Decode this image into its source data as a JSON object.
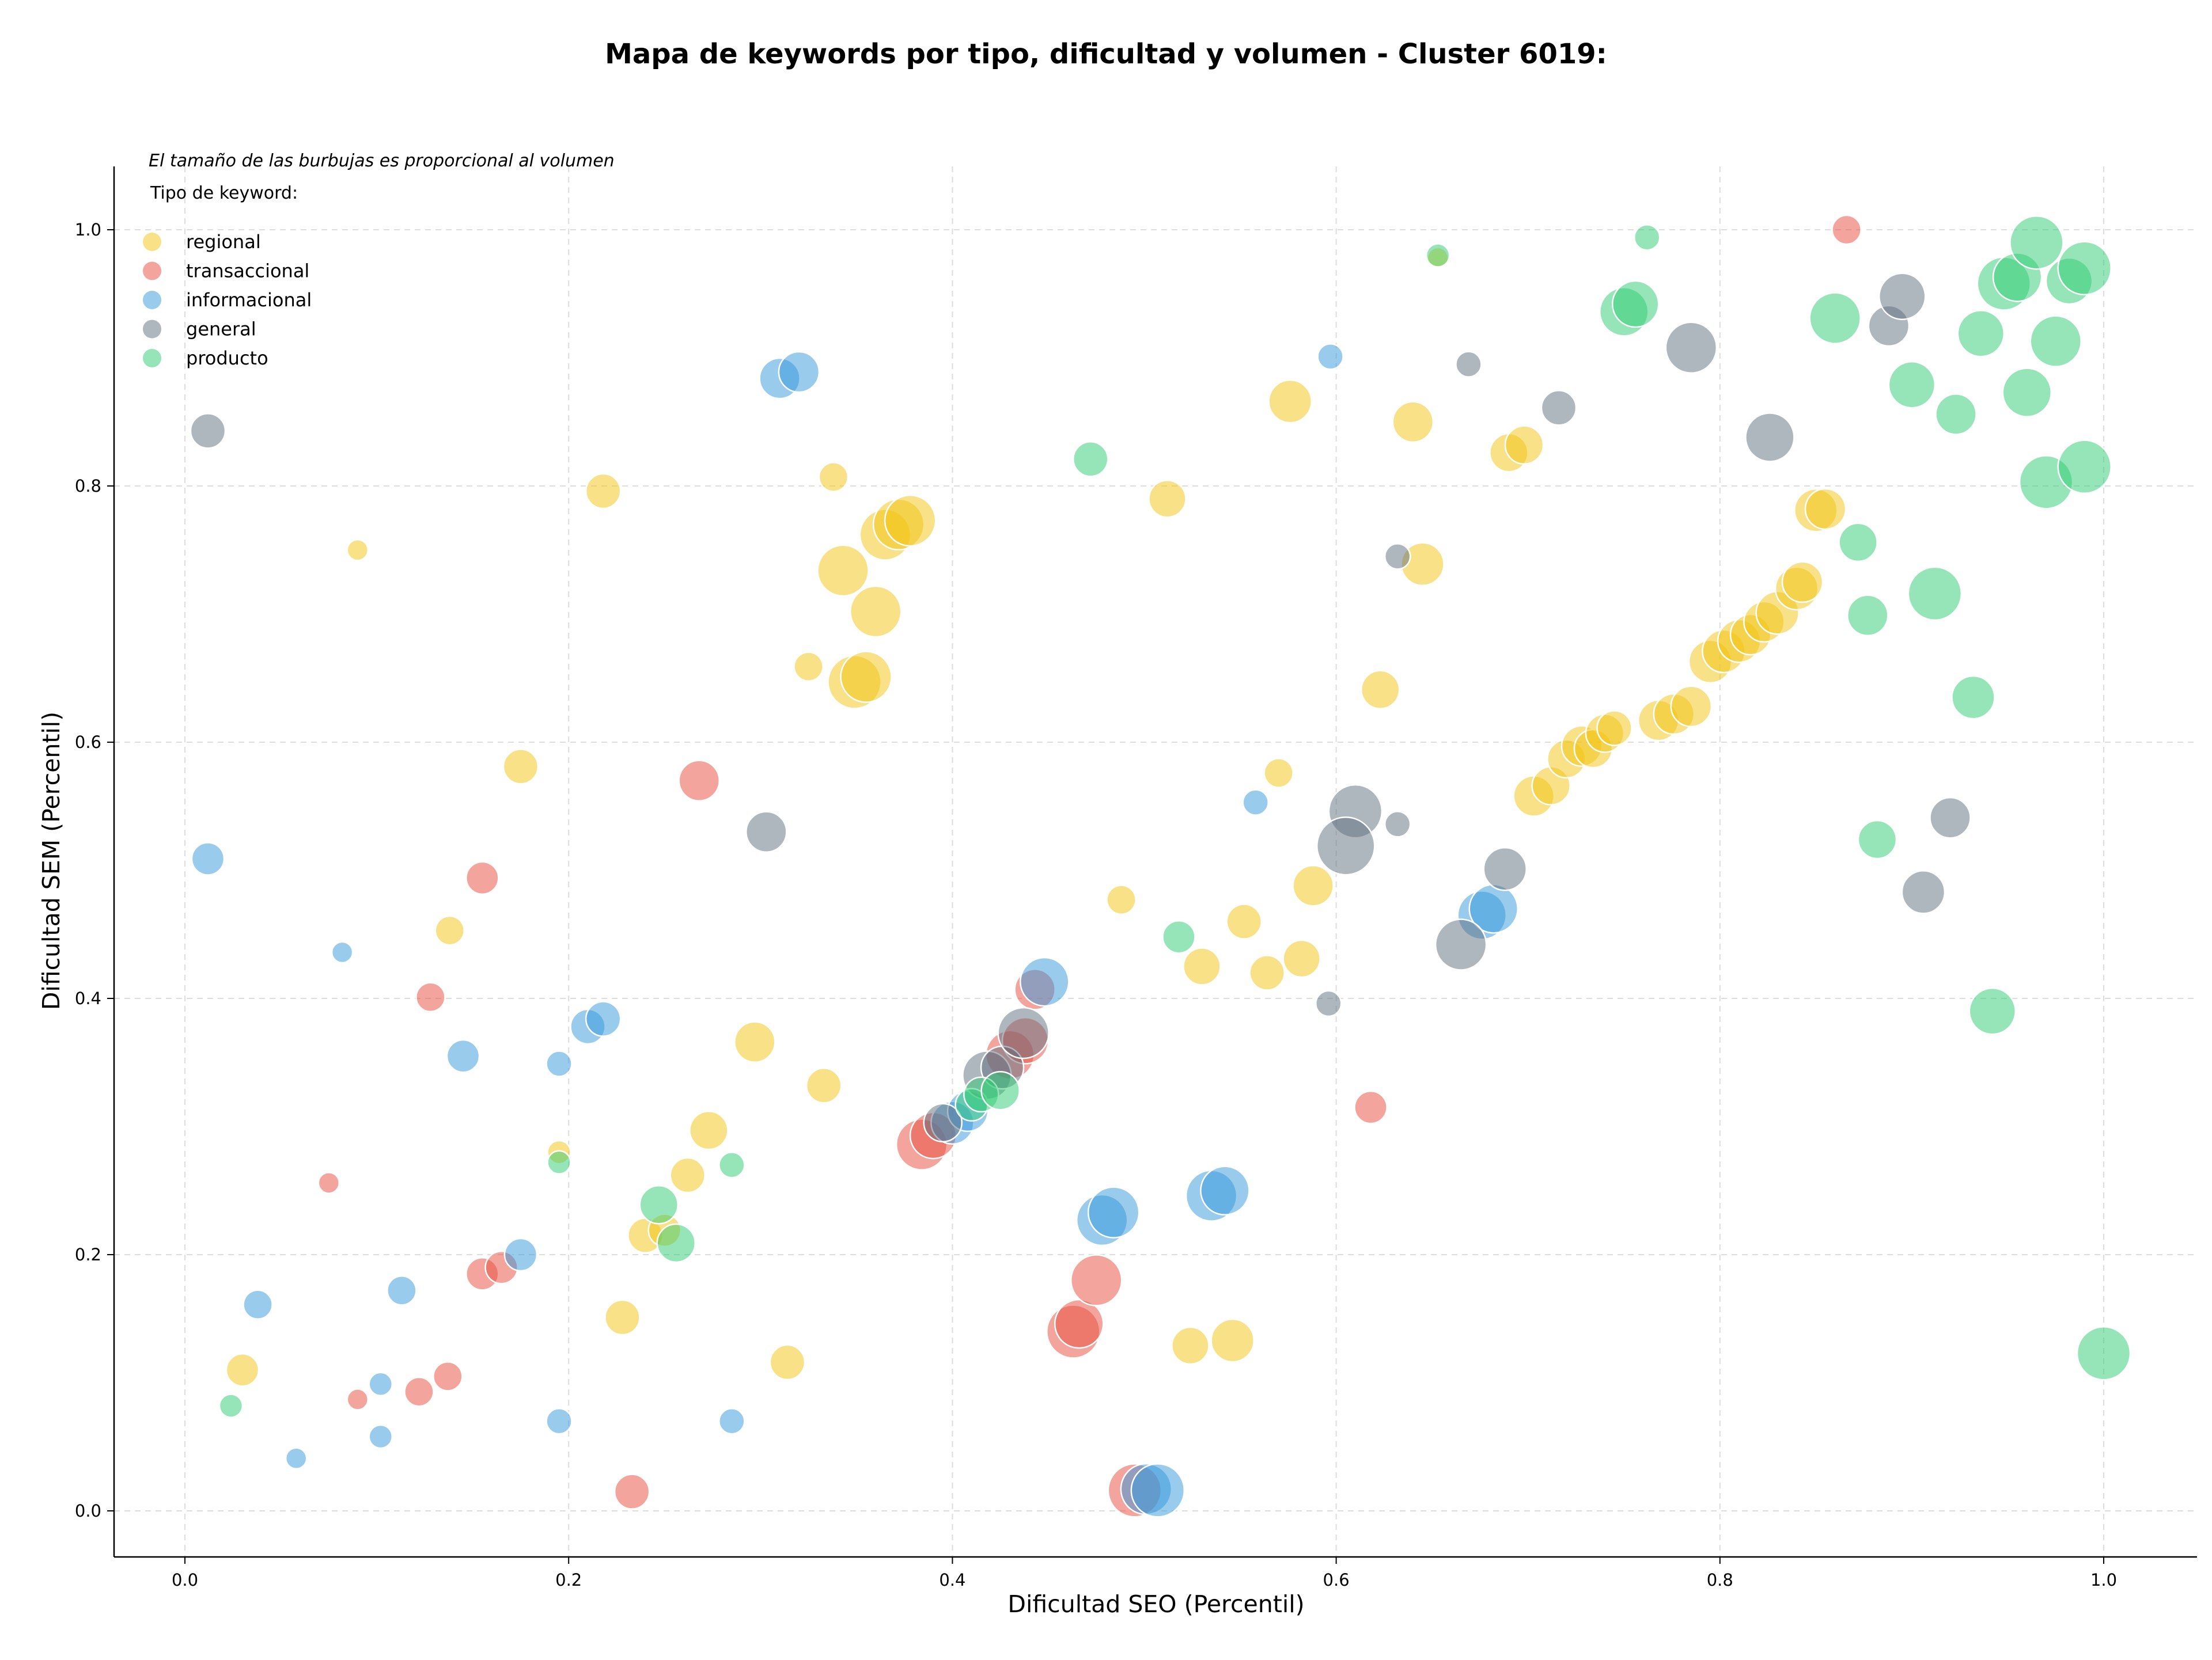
{
  "chart_data": {
    "type": "scatter",
    "title": "Mapa de keywords por tipo, dificultad y volumen - Cluster 6019:",
    "xlabel": "Dificultad SEO (Percentil)",
    "ylabel": "Dificultad SEM (Percentil)",
    "xlim": [
      -0.037,
      1.048
    ],
    "ylim": [
      -0.035,
      1.05
    ],
    "xticks": [
      0.0,
      0.2,
      0.4,
      0.6,
      0.8,
      1.0
    ],
    "yticks": [
      0.0,
      0.2,
      0.4,
      0.6,
      0.8,
      1.0
    ],
    "grid": true,
    "legend_position": "top-left",
    "legend_title": "Tipo de keyword:",
    "note": "El tamaño de las burbujas es proporcional al volumen",
    "series": [
      {
        "name": "regional",
        "color": "#f1c40f",
        "points": [
          [
            0.653,
            0.978,
            18
          ],
          [
            0.09,
            0.75,
            18
          ],
          [
            0.195,
            0.28,
            20
          ],
          [
            0.338,
            0.807,
            25
          ],
          [
            0.325,
            0.659,
            25
          ],
          [
            0.218,
            0.796,
            30
          ],
          [
            0.175,
            0.581,
            30
          ],
          [
            0.138,
            0.453,
            25
          ],
          [
            0.03,
            0.11,
            28
          ],
          [
            0.228,
            0.151,
            30
          ],
          [
            0.314,
            0.116,
            30
          ],
          [
            0.333,
            0.332,
            30
          ],
          [
            0.297,
            0.366,
            35
          ],
          [
            0.273,
            0.297,
            33
          ],
          [
            0.262,
            0.262,
            30
          ],
          [
            0.24,
            0.215,
            30
          ],
          [
            0.25,
            0.219,
            28
          ],
          [
            0.488,
            0.477,
            25
          ],
          [
            0.512,
            0.79,
            32
          ],
          [
            0.53,
            0.425,
            32
          ],
          [
            0.552,
            0.46,
            30
          ],
          [
            0.564,
            0.42,
            30
          ],
          [
            0.57,
            0.576,
            25
          ],
          [
            0.576,
            0.866,
            37
          ],
          [
            0.582,
            0.431,
            32
          ],
          [
            0.588,
            0.488,
            35
          ],
          [
            0.623,
            0.641,
            33
          ],
          [
            0.64,
            0.85,
            35
          ],
          [
            0.645,
            0.739,
            37
          ],
          [
            0.69,
            0.826,
            33
          ],
          [
            0.698,
            0.832,
            33
          ],
          [
            0.703,
            0.558,
            35
          ],
          [
            0.712,
            0.566,
            33
          ],
          [
            0.72,
            0.587,
            33
          ],
          [
            0.728,
            0.597,
            35
          ],
          [
            0.734,
            0.595,
            33
          ],
          [
            0.74,
            0.607,
            33
          ],
          [
            0.745,
            0.611,
            30
          ],
          [
            0.768,
            0.617,
            35
          ],
          [
            0.776,
            0.622,
            35
          ],
          [
            0.785,
            0.628,
            35
          ],
          [
            0.795,
            0.663,
            37
          ],
          [
            0.802,
            0.671,
            37
          ],
          [
            0.81,
            0.679,
            37
          ],
          [
            0.816,
            0.684,
            35
          ],
          [
            0.823,
            0.694,
            35
          ],
          [
            0.83,
            0.701,
            37
          ],
          [
            0.84,
            0.72,
            37
          ],
          [
            0.843,
            0.725,
            35
          ],
          [
            0.85,
            0.781,
            37
          ],
          [
            0.855,
            0.782,
            35
          ],
          [
            0.524,
            0.129,
            32
          ],
          [
            0.546,
            0.133,
            37
          ],
          [
            0.343,
            0.734,
            44
          ],
          [
            0.36,
            0.702,
            44
          ],
          [
            0.365,
            0.762,
            44
          ],
          [
            0.372,
            0.77,
            44
          ],
          [
            0.378,
            0.773,
            44
          ],
          [
            0.349,
            0.647,
            46
          ],
          [
            0.355,
            0.651,
            44
          ]
        ]
      },
      {
        "name": "transaccional",
        "color": "#e74c3c",
        "points": [
          [
            0.866,
            1.0,
            25
          ],
          [
            0.075,
            0.256,
            18
          ],
          [
            0.09,
            0.087,
            18
          ],
          [
            0.128,
            0.401,
            25
          ],
          [
            0.122,
            0.093,
            25
          ],
          [
            0.137,
            0.105,
            25
          ],
          [
            0.155,
            0.494,
            28
          ],
          [
            0.155,
            0.185,
            28
          ],
          [
            0.165,
            0.19,
            28
          ],
          [
            0.268,
            0.57,
            35
          ],
          [
            0.233,
            0.015,
            30
          ],
          [
            0.618,
            0.315,
            28
          ],
          [
            0.384,
            0.286,
            44
          ],
          [
            0.39,
            0.293,
            40
          ],
          [
            0.463,
            0.14,
            46
          ],
          [
            0.466,
            0.146,
            42
          ],
          [
            0.475,
            0.18,
            44
          ],
          [
            0.495,
            0.016,
            46
          ],
          [
            0.43,
            0.356,
            42
          ],
          [
            0.438,
            0.367,
            40
          ],
          [
            0.443,
            0.407,
            35
          ]
        ]
      },
      {
        "name": "informacional",
        "color": "#3498db",
        "points": [
          [
            0.597,
            0.901,
            22
          ],
          [
            0.082,
            0.436,
            18
          ],
          [
            0.102,
            0.099,
            20
          ],
          [
            0.102,
            0.058,
            20
          ],
          [
            0.195,
            0.349,
            22
          ],
          [
            0.195,
            0.07,
            22
          ],
          [
            0.058,
            0.041,
            18
          ],
          [
            0.012,
            0.509,
            28
          ],
          [
            0.038,
            0.161,
            25
          ],
          [
            0.113,
            0.172,
            25
          ],
          [
            0.175,
            0.2,
            28
          ],
          [
            0.145,
            0.355,
            28
          ],
          [
            0.21,
            0.378,
            30
          ],
          [
            0.218,
            0.384,
            30
          ],
          [
            0.285,
            0.07,
            22
          ],
          [
            0.31,
            0.884,
            35
          ],
          [
            0.32,
            0.889,
            35
          ],
          [
            0.558,
            0.553,
            22
          ],
          [
            0.4,
            0.303,
            37
          ],
          [
            0.408,
            0.312,
            35
          ],
          [
            0.448,
            0.413,
            42
          ],
          [
            0.478,
            0.227,
            44
          ],
          [
            0.484,
            0.233,
            44
          ],
          [
            0.535,
            0.246,
            44
          ],
          [
            0.542,
            0.25,
            42
          ],
          [
            0.501,
            0.017,
            44
          ],
          [
            0.507,
            0.016,
            46
          ],
          [
            0.676,
            0.465,
            42
          ],
          [
            0.682,
            0.47,
            42
          ]
        ]
      },
      {
        "name": "general",
        "color": "#5d6d7e",
        "points": [
          [
            0.012,
            0.843,
            30
          ],
          [
            0.669,
            0.895,
            22
          ],
          [
            0.632,
            0.745,
            22
          ],
          [
            0.632,
            0.536,
            22
          ],
          [
            0.596,
            0.396,
            22
          ],
          [
            0.303,
            0.53,
            35
          ],
          [
            0.716,
            0.861,
            30
          ],
          [
            0.785,
            0.908,
            44
          ],
          [
            0.826,
            0.838,
            42
          ],
          [
            0.888,
            0.925,
            35
          ],
          [
            0.895,
            0.948,
            40
          ],
          [
            0.92,
            0.541,
            35
          ],
          [
            0.906,
            0.483,
            37
          ],
          [
            0.61,
            0.546,
            46
          ],
          [
            0.605,
            0.519,
            50
          ],
          [
            0.665,
            0.442,
            44
          ],
          [
            0.688,
            0.501,
            37
          ],
          [
            0.395,
            0.303,
            33
          ],
          [
            0.418,
            0.34,
            42
          ],
          [
            0.426,
            0.346,
            37
          ],
          [
            0.437,
            0.373,
            44
          ]
        ]
      },
      {
        "name": "producto",
        "color": "#2ecc71",
        "points": [
          [
            0.653,
            0.98,
            20
          ],
          [
            0.762,
            0.994,
            22
          ],
          [
            0.024,
            0.082,
            20
          ],
          [
            0.195,
            0.272,
            20
          ],
          [
            0.285,
            0.27,
            22
          ],
          [
            0.472,
            0.821,
            30
          ],
          [
            0.518,
            0.448,
            28
          ],
          [
            0.247,
            0.239,
            33
          ],
          [
            0.256,
            0.209,
            33
          ],
          [
            0.41,
            0.317,
            28
          ],
          [
            0.415,
            0.325,
            30
          ],
          [
            0.425,
            0.328,
            33
          ],
          [
            0.75,
            0.936,
            42
          ],
          [
            0.756,
            0.942,
            40
          ],
          [
            0.86,
            0.931,
            44
          ],
          [
            0.872,
            0.756,
            33
          ],
          [
            0.877,
            0.699,
            35
          ],
          [
            0.882,
            0.524,
            33
          ],
          [
            0.9,
            0.879,
            40
          ],
          [
            0.923,
            0.856,
            35
          ],
          [
            0.932,
            0.635,
            37
          ],
          [
            0.912,
            0.716,
            46
          ],
          [
            0.936,
            0.919,
            40
          ],
          [
            0.942,
            0.39,
            40
          ],
          [
            0.948,
            0.958,
            46
          ],
          [
            0.955,
            0.963,
            42
          ],
          [
            0.96,
            0.873,
            42
          ],
          [
            0.965,
            0.99,
            46
          ],
          [
            0.97,
            0.803,
            46
          ],
          [
            0.975,
            0.913,
            44
          ],
          [
            0.982,
            0.96,
            40
          ],
          [
            0.99,
            0.97,
            46
          ],
          [
            0.99,
            0.815,
            46
          ],
          [
            1.0,
            0.123,
            46
          ]
        ]
      }
    ]
  }
}
